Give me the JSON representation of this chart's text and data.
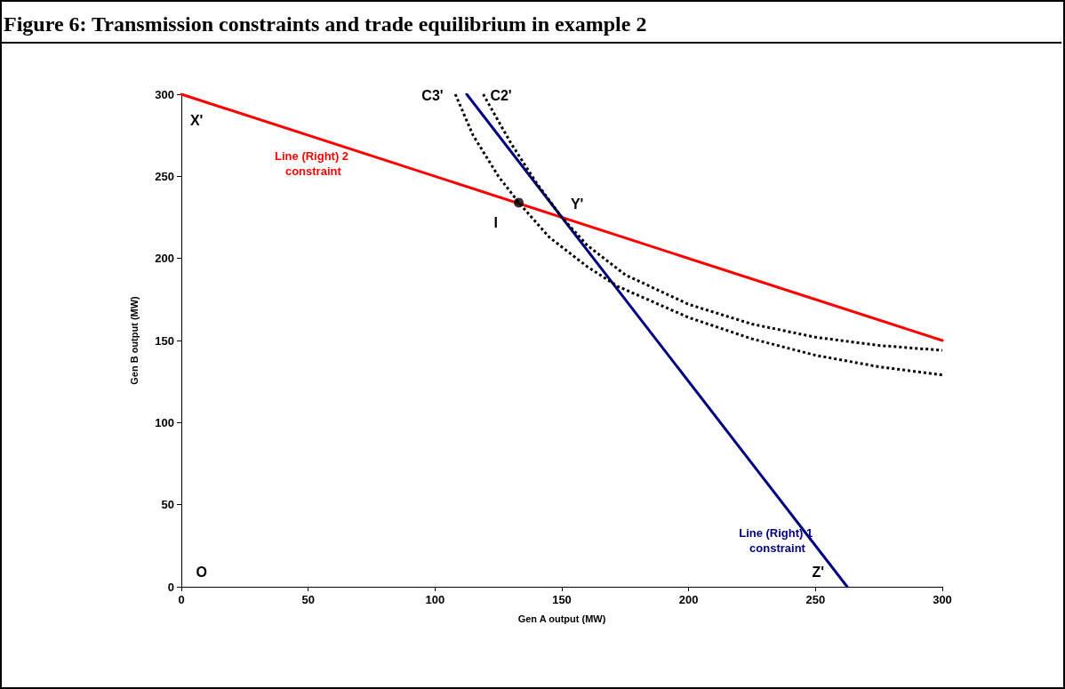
{
  "chart_data": {
    "type": "line",
    "title": "Figure 6: Transmission constraints and trade equilibrium in example 2",
    "xlabel": "Gen A output (MW)",
    "ylabel": "Gen B output (MW)",
    "xlim": [
      0,
      300
    ],
    "ylim": [
      0,
      300
    ],
    "xticks": [
      0,
      50,
      100,
      150,
      200,
      250,
      300
    ],
    "yticks": [
      0,
      50,
      100,
      150,
      200,
      250,
      300
    ],
    "grid": false,
    "legend": false,
    "marker": "none",
    "line_style": "solid",
    "series": [
      {
        "name": "Line (Right) 2 constraint",
        "color": "#ff0000",
        "x": [
          0,
          300
        ],
        "values": [
          300,
          150
        ]
      },
      {
        "name": "Line (Right) 1 constraint",
        "color": "#000080",
        "x": [
          112.5,
          262.5
        ],
        "values": [
          300,
          0
        ]
      },
      {
        "color": "#000000",
        "line_style": "dotted",
        "x": [
          119,
          130,
          140,
          150,
          160,
          175,
          200,
          225,
          250,
          275,
          300
        ],
        "values": [
          300,
          270,
          246,
          225,
          208,
          190,
          172,
          160,
          152,
          147,
          144
        ]
      },
      {
        "color": "#000000",
        "line_style": "dotted",
        "x": [
          108,
          115,
          125,
          133,
          145,
          160,
          172,
          200,
          225,
          250,
          275,
          300
        ],
        "values": [
          300,
          275,
          250,
          234,
          213,
          195,
          183,
          164,
          151,
          141,
          134,
          129
        ]
      },
      {
        "type": "scatter",
        "marker": "circle",
        "color": "#000000",
        "x": [
          133
        ],
        "values": [
          234
        ]
      }
    ],
    "annotations": [
      "X'",
      "Y'",
      "I",
      "O",
      "Z'",
      "C3'",
      "C2'"
    ]
  }
}
